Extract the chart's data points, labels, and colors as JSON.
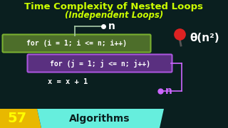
{
  "bg_color": "#0a1f1f",
  "title_line1": "Time Complexity of Nested Loops",
  "title_line2": "(Independent Loops)",
  "title_color": "#ccff00",
  "outer_loop_text": "for (i = 1; i <= n; i++)",
  "outer_loop_bg": "#4d6e2a",
  "outer_loop_border": "#7ab030",
  "inner_loop_text": "for (j = 1; j <= n; j++)",
  "inner_loop_bg": "#5a3080",
  "inner_loop_border": "#aa55dd",
  "body_text": "x = x + 1",
  "body_color": "#ffffff",
  "n_color_outer": "#ffffff",
  "n_color_inner": "#cc66ff",
  "theta_text": "θ(n²)",
  "theta_color": "#ffffff",
  "pin_color": "#dd2222",
  "bottom_num": "57",
  "bottom_num_color": "#ffff00",
  "bottom_num_bg": "#e8b800",
  "bottom_text": "Algorithms",
  "bottom_text_color": "#0a1f1f",
  "bottom_text_bg": "#66eedd",
  "line_color_outer": "#aaccaa",
  "line_color_inner": "#cc66ff"
}
